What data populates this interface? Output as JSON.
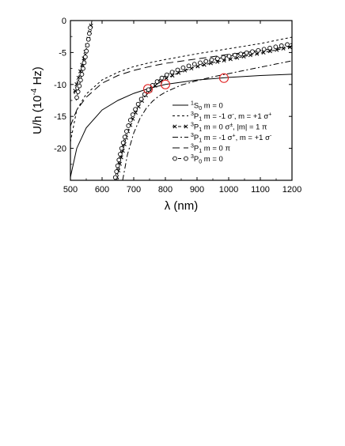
{
  "chart_data": {
    "type": "line",
    "title": "",
    "xlabel": "λ (nm)",
    "ylabel_main": "U/h (10",
    "ylabel_exp": "-4",
    "ylabel_end": " Hz)",
    "xlim": [
      500,
      1200
    ],
    "ylim": [
      -25,
      0
    ],
    "xticks": [
      500,
      600,
      700,
      800,
      900,
      1000,
      1100,
      1200
    ],
    "yticks": [
      0,
      -5,
      -10,
      -15,
      -20
    ],
    "grid": false,
    "legend_position": "lower-right",
    "series": [
      {
        "name": "¹S₀  m = 0",
        "legend_parts": [
          "",
          "1",
          "S",
          "0",
          "  m = 0"
        ],
        "style": "solid",
        "x": [
          500,
          520,
          550,
          600,
          650,
          700,
          750,
          800,
          900,
          1000,
          1100,
          1200
        ],
        "y": [
          -24.5,
          -20.0,
          -16.8,
          -14.0,
          -12.5,
          -11.4,
          -10.6,
          -10.0,
          -9.3,
          -8.9,
          -8.6,
          -8.4
        ]
      },
      {
        "name": "³P₁  m = -1 σ₋,  m = +1 σ⁺",
        "legend_parts": [
          "",
          "3",
          "P",
          "1",
          "  m = -1 σ",
          "-",
          ",  m = +1 σ",
          "+"
        ],
        "style": "short-dash",
        "x": [
          500,
          520,
          550,
          600,
          650,
          700,
          750,
          800,
          900,
          1000,
          1100,
          1200
        ],
        "y": [
          -19.0,
          -14.0,
          -11.5,
          -9.3,
          -8.1,
          -7.2,
          -6.6,
          -6.1,
          -5.2,
          -4.4,
          -3.6,
          -2.6
        ]
      },
      {
        "name": "³P₁  m = 0 σ±,  |m| = 1 π",
        "legend_parts": [
          "",
          "3",
          "P",
          "1",
          "  m = 0 σ",
          "±",
          ",  |m| = 1 π"
        ],
        "style": "dash-cross",
        "segments": [
          {
            "x": [
              512,
              520,
              530,
              540,
              550,
              560,
              568
            ],
            "y": [
              -11.5,
              -9.9,
              -8.2,
              -6.4,
              -4.4,
              -2.2,
              0
            ]
          },
          {
            "x": [
              645,
              660,
              680,
              700,
              720,
              740,
              760,
              780,
              800,
              850,
              900,
              950,
              1000,
              1050,
              1100,
              1150,
              1200
            ],
            "y": [
              -25,
              -21.5,
              -17.5,
              -15.0,
              -13.0,
              -11.6,
              -10.5,
              -9.7,
              -9.1,
              -8.0,
              -7.2,
              -6.6,
              -6.1,
              -5.6,
              -5.1,
              -4.6,
              -4.1
            ]
          }
        ]
      },
      {
        "name": "³P₁  m = -1 σ₊,  m = +1 σ₋",
        "legend_parts": [
          "",
          "3",
          "P",
          "1",
          "  m = -1 σ",
          "+",
          ",  m = +1 σ",
          "-"
        ],
        "style": "dash-dot",
        "x": [
          665,
          680,
          700,
          720,
          740,
          760,
          780,
          800,
          850,
          900,
          950,
          1000,
          1050,
          1100,
          1150,
          1200
        ],
        "y": [
          -25,
          -21.0,
          -17.6,
          -15.3,
          -13.7,
          -12.6,
          -11.8,
          -11.2,
          -10.1,
          -9.4,
          -8.8,
          -8.3,
          -7.8,
          -7.3,
          -6.8,
          -6.3
        ]
      },
      {
        "name": "³P₁  m = 0 π",
        "legend_parts": [
          "",
          "3",
          "P",
          "1",
          "  m = 0 π"
        ],
        "style": "long-dash",
        "x": [
          500,
          520,
          550,
          600,
          650,
          700,
          750,
          800,
          900,
          1000,
          1100,
          1200
        ],
        "y": [
          -16.5,
          -14.0,
          -12.0,
          -9.8,
          -8.6,
          -7.8,
          -7.2,
          -6.7,
          -6.0,
          -5.3,
          -4.7,
          -4.0
        ]
      },
      {
        "name": "³P₀  m = 0",
        "legend_parts": [
          "",
          "3",
          "P",
          "0",
          "  m = 0"
        ],
        "style": "dash-circle",
        "segments": [
          {
            "x": [
              518,
              528,
              538,
              548,
              556,
              563
            ],
            "y": [
              -12.5,
              -10.3,
              -8.0,
              -5.5,
              -3.2,
              -1.0
            ]
          },
          {
            "x": [
              640,
              650,
              660,
              670,
              680,
              690,
              700,
              710,
              720,
              730,
              740,
              750,
              760,
              770,
              780,
              800,
              820,
              840,
              860,
              880,
              900,
              920,
              940,
              960,
              980,
              1000,
              1020,
              1040,
              1060,
              1080,
              1100,
              1120,
              1140,
              1160,
              1180,
              1200
            ],
            "y": [
              -25,
              -22.5,
              -20.3,
              -18.5,
              -16.9,
              -15.5,
              -14.4,
              -13.4,
              -12.6,
              -11.8,
              -11.2,
              -10.6,
              -10.1,
              -9.7,
              -9.3,
              -8.6,
              -8.1,
              -7.7,
              -7.3,
              -7.0,
              -6.7,
              -6.5,
              -6.2,
              -6.0,
              -5.8,
              -5.6,
              -5.4,
              -5.2,
              -5.0,
              -4.8,
              -4.6,
              -4.4,
              -4.2,
              -4.0,
              -3.8,
              -3.6
            ]
          }
        ]
      }
    ],
    "magic_points": [
      {
        "x": 745,
        "y": -10.7
      },
      {
        "x": 800,
        "y": -10.0
      },
      {
        "x": 985,
        "y": -9.0
      }
    ],
    "marker_color": "#e02020"
  }
}
